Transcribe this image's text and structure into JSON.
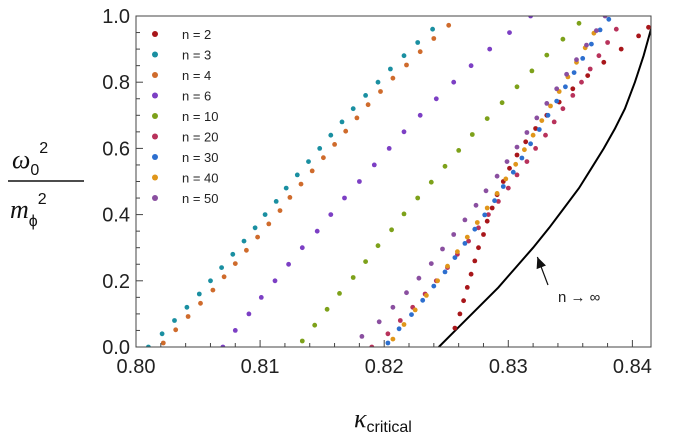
{
  "chart_data": {
    "type": "scatter",
    "title": "",
    "xlabel": {
      "main": "κ",
      "sub": "critical"
    },
    "ylabel": {
      "num_main": "ω",
      "num_sub": "0",
      "num_sup": "2",
      "den_main": "m",
      "den_sub": "ϕ",
      "den_sup": "2"
    },
    "xlim": [
      0.8,
      0.8415
    ],
    "ylim": [
      0.0,
      1.0
    ],
    "xticks": [
      0.8,
      0.81,
      0.82,
      0.83,
      0.84
    ],
    "xtick_labels": [
      "0.80",
      "0.81",
      "0.82",
      "0.83",
      "0.84"
    ],
    "yticks": [
      0.0,
      0.2,
      0.4,
      0.6,
      0.8,
      1.0
    ],
    "ytick_labels": [
      "0.0",
      "0.2",
      "0.4",
      "0.6",
      "0.8",
      "1.0"
    ],
    "grid": false,
    "legend_position": "top-left",
    "series": [
      {
        "name": "n = 2",
        "color": "#a8161a",
        "points": [
          [
            0.8257,
            0.057
          ],
          [
            0.8261,
            0.1
          ],
          [
            0.8264,
            0.14
          ],
          [
            0.8267,
            0.18
          ],
          [
            0.827,
            0.22
          ],
          [
            0.8273,
            0.26
          ],
          [
            0.8276,
            0.3
          ],
          [
            0.828,
            0.34
          ],
          [
            0.8283,
            0.38
          ],
          [
            0.8287,
            0.42
          ],
          [
            0.8291,
            0.46
          ],
          [
            0.8296,
            0.5
          ],
          [
            0.8301,
            0.54
          ],
          [
            0.8307,
            0.58
          ],
          [
            0.8314,
            0.62
          ],
          [
            0.8322,
            0.66
          ],
          [
            0.8331,
            0.7
          ],
          [
            0.8341,
            0.74
          ],
          [
            0.8352,
            0.78
          ],
          [
            0.8364,
            0.82
          ],
          [
            0.8377,
            0.86
          ],
          [
            0.8391,
            0.9
          ],
          [
            0.8405,
            0.94
          ],
          [
            0.8413,
            0.966
          ]
        ]
      },
      {
        "name": "n = 3",
        "color": "#1a8fa1",
        "points": [
          [
            0.801,
            0.0
          ],
          [
            0.8021,
            0.04
          ],
          [
            0.8031,
            0.08
          ],
          [
            0.8041,
            0.12
          ],
          [
            0.8051,
            0.16
          ],
          [
            0.806,
            0.2
          ],
          [
            0.8069,
            0.24
          ],
          [
            0.8078,
            0.28
          ],
          [
            0.8087,
            0.32
          ],
          [
            0.8096,
            0.36
          ],
          [
            0.8104,
            0.4
          ],
          [
            0.8113,
            0.44
          ],
          [
            0.8121,
            0.48
          ],
          [
            0.813,
            0.52
          ],
          [
            0.8139,
            0.56
          ],
          [
            0.8148,
            0.6
          ],
          [
            0.8157,
            0.64
          ],
          [
            0.8166,
            0.68
          ],
          [
            0.8175,
            0.72
          ],
          [
            0.8185,
            0.76
          ],
          [
            0.8195,
            0.8
          ],
          [
            0.8205,
            0.84
          ],
          [
            0.8216,
            0.88
          ],
          [
            0.8227,
            0.92
          ],
          [
            0.8239,
            0.96
          ]
        ]
      },
      {
        "name": "n = 4",
        "color": "#cf6b2c",
        "points": [
          [
            0.8022,
            0.012
          ],
          [
            0.8032,
            0.052
          ],
          [
            0.8042,
            0.092
          ],
          [
            0.8052,
            0.132
          ],
          [
            0.8062,
            0.172
          ],
          [
            0.8071,
            0.212
          ],
          [
            0.808,
            0.252
          ],
          [
            0.8089,
            0.292
          ],
          [
            0.8098,
            0.332
          ],
          [
            0.8107,
            0.372
          ],
          [
            0.8116,
            0.412
          ],
          [
            0.8124,
            0.452
          ],
          [
            0.8133,
            0.492
          ],
          [
            0.8142,
            0.532
          ],
          [
            0.8151,
            0.572
          ],
          [
            0.816,
            0.612
          ],
          [
            0.8169,
            0.652
          ],
          [
            0.8178,
            0.692
          ],
          [
            0.8187,
            0.732
          ],
          [
            0.8197,
            0.772
          ],
          [
            0.8207,
            0.812
          ],
          [
            0.8218,
            0.852
          ],
          [
            0.8229,
            0.892
          ],
          [
            0.824,
            0.932
          ],
          [
            0.8252,
            0.972
          ]
        ]
      },
      {
        "name": "n = 6",
        "color": "#7c3fc4",
        "points": [
          [
            0.807,
            0.0
          ],
          [
            0.808,
            0.05
          ],
          [
            0.8091,
            0.1
          ],
          [
            0.8101,
            0.15
          ],
          [
            0.8112,
            0.2
          ],
          [
            0.8123,
            0.25
          ],
          [
            0.8134,
            0.3
          ],
          [
            0.8146,
            0.35
          ],
          [
            0.8157,
            0.4
          ],
          [
            0.8168,
            0.45
          ],
          [
            0.818,
            0.5
          ],
          [
            0.8192,
            0.55
          ],
          [
            0.8204,
            0.6
          ],
          [
            0.8216,
            0.65
          ],
          [
            0.8229,
            0.7
          ],
          [
            0.8242,
            0.75
          ],
          [
            0.8256,
            0.8
          ],
          [
            0.827,
            0.85
          ],
          [
            0.8285,
            0.9
          ],
          [
            0.8301,
            0.95
          ],
          [
            0.8318,
            1.0
          ]
        ]
      },
      {
        "name": "n = 10",
        "color": "#7da11a",
        "points": [
          [
            0.8134,
            0.018
          ],
          [
            0.8144,
            0.066
          ],
          [
            0.8154,
            0.114
          ],
          [
            0.8164,
            0.162
          ],
          [
            0.8175,
            0.21
          ],
          [
            0.8185,
            0.258
          ],
          [
            0.8195,
            0.306
          ],
          [
            0.8206,
            0.354
          ],
          [
            0.8216,
            0.402
          ],
          [
            0.8227,
            0.45
          ],
          [
            0.8238,
            0.498
          ],
          [
            0.8249,
            0.546
          ],
          [
            0.826,
            0.594
          ],
          [
            0.8271,
            0.642
          ],
          [
            0.8283,
            0.69
          ],
          [
            0.8295,
            0.738
          ],
          [
            0.8307,
            0.786
          ],
          [
            0.8319,
            0.834
          ],
          [
            0.8331,
            0.882
          ],
          [
            0.8344,
            0.93
          ],
          [
            0.8357,
            0.978
          ]
        ]
      },
      {
        "name": "n = 20",
        "color": "#b8325b",
        "points": [
          [
            0.819,
            0.0
          ],
          [
            0.8203,
            0.04
          ],
          [
            0.8213,
            0.08
          ],
          [
            0.8223,
            0.12
          ],
          [
            0.8233,
            0.16
          ],
          [
            0.8242,
            0.2
          ],
          [
            0.8251,
            0.24
          ],
          [
            0.8259,
            0.28
          ],
          [
            0.8268,
            0.32
          ],
          [
            0.8276,
            0.36
          ],
          [
            0.8284,
            0.4
          ],
          [
            0.8292,
            0.44
          ],
          [
            0.83,
            0.48
          ],
          [
            0.8307,
            0.52
          ],
          [
            0.8315,
            0.56
          ],
          [
            0.8322,
            0.6
          ],
          [
            0.833,
            0.64
          ],
          [
            0.8337,
            0.68
          ],
          [
            0.8344,
            0.72
          ],
          [
            0.8352,
            0.76
          ],
          [
            0.8359,
            0.8
          ],
          [
            0.8366,
            0.84
          ],
          [
            0.8373,
            0.88
          ],
          [
            0.838,
            0.92
          ],
          [
            0.8387,
            0.96
          ]
        ]
      },
      {
        "name": "n = 30",
        "color": "#2d6fcf",
        "points": [
          [
            0.8203,
            0.012
          ],
          [
            0.8212,
            0.055
          ],
          [
            0.8222,
            0.098
          ],
          [
            0.8231,
            0.141
          ],
          [
            0.824,
            0.184
          ],
          [
            0.8249,
            0.227
          ],
          [
            0.8257,
            0.27
          ],
          [
            0.8265,
            0.313
          ],
          [
            0.8273,
            0.356
          ],
          [
            0.8281,
            0.399
          ],
          [
            0.8289,
            0.442
          ],
          [
            0.8296,
            0.485
          ],
          [
            0.8304,
            0.528
          ],
          [
            0.8311,
            0.571
          ],
          [
            0.8318,
            0.614
          ],
          [
            0.8325,
            0.657
          ],
          [
            0.8332,
            0.7
          ],
          [
            0.8339,
            0.743
          ],
          [
            0.8346,
            0.786
          ],
          [
            0.8353,
            0.829
          ],
          [
            0.836,
            0.872
          ],
          [
            0.8367,
            0.915
          ],
          [
            0.8374,
            0.958
          ],
          [
            0.8381,
            0.99
          ]
        ]
      },
      {
        "name": "n = 40",
        "color": "#e0961a",
        "points": [
          [
            0.8207,
            0.024
          ],
          [
            0.8216,
            0.068
          ],
          [
            0.8225,
            0.112
          ],
          [
            0.8234,
            0.156
          ],
          [
            0.8243,
            0.2
          ],
          [
            0.8251,
            0.244
          ],
          [
            0.8259,
            0.288
          ],
          [
            0.8267,
            0.332
          ],
          [
            0.8275,
            0.376
          ],
          [
            0.8283,
            0.42
          ],
          [
            0.8291,
            0.464
          ],
          [
            0.8298,
            0.508
          ],
          [
            0.8306,
            0.552
          ],
          [
            0.8313,
            0.596
          ],
          [
            0.832,
            0.64
          ],
          [
            0.8327,
            0.684
          ],
          [
            0.8334,
            0.728
          ],
          [
            0.8341,
            0.772
          ],
          [
            0.8348,
            0.816
          ],
          [
            0.8355,
            0.86
          ],
          [
            0.8362,
            0.904
          ],
          [
            0.8369,
            0.948
          ]
        ]
      },
      {
        "name": "n = 50",
        "color": "#8a4fa0",
        "points": [
          [
            0.8182,
            0.032
          ],
          [
            0.8196,
            0.076
          ],
          [
            0.8207,
            0.12
          ],
          [
            0.8218,
            0.164
          ],
          [
            0.8228,
            0.208
          ],
          [
            0.8238,
            0.252
          ],
          [
            0.8247,
            0.296
          ],
          [
            0.8256,
            0.34
          ],
          [
            0.8265,
            0.384
          ],
          [
            0.8274,
            0.428
          ],
          [
            0.8282,
            0.472
          ],
          [
            0.8291,
            0.516
          ],
          [
            0.8299,
            0.56
          ],
          [
            0.8307,
            0.604
          ],
          [
            0.8315,
            0.648
          ],
          [
            0.8323,
            0.692
          ],
          [
            0.8331,
            0.736
          ],
          [
            0.8339,
            0.78
          ],
          [
            0.8347,
            0.824
          ],
          [
            0.8355,
            0.868
          ],
          [
            0.8363,
            0.912
          ],
          [
            0.8371,
            0.956
          ],
          [
            0.8378,
            1.0
          ]
        ]
      }
    ],
    "limit_curve": {
      "name": "n → ∞",
      "color": "#000000",
      "points": [
        [
          0.8244,
          0.0
        ],
        [
          0.826,
          0.06
        ],
        [
          0.8276,
          0.12
        ],
        [
          0.8292,
          0.18
        ],
        [
          0.8306,
          0.24
        ],
        [
          0.832,
          0.3
        ],
        [
          0.8333,
          0.36
        ],
        [
          0.8345,
          0.42
        ],
        [
          0.8357,
          0.48
        ],
        [
          0.8367,
          0.54
        ],
        [
          0.8377,
          0.6
        ],
        [
          0.8386,
          0.66
        ],
        [
          0.8394,
          0.72
        ],
        [
          0.8402,
          0.8
        ],
        [
          0.8409,
          0.88
        ],
        [
          0.8415,
          0.96
        ],
        [
          0.8417,
          1.0
        ]
      ]
    },
    "annotations": [
      {
        "text": "n → ∞",
        "anchor": [
          0.8312,
          0.275
        ],
        "points_to": [
          0.8317,
          0.29
        ]
      }
    ]
  }
}
